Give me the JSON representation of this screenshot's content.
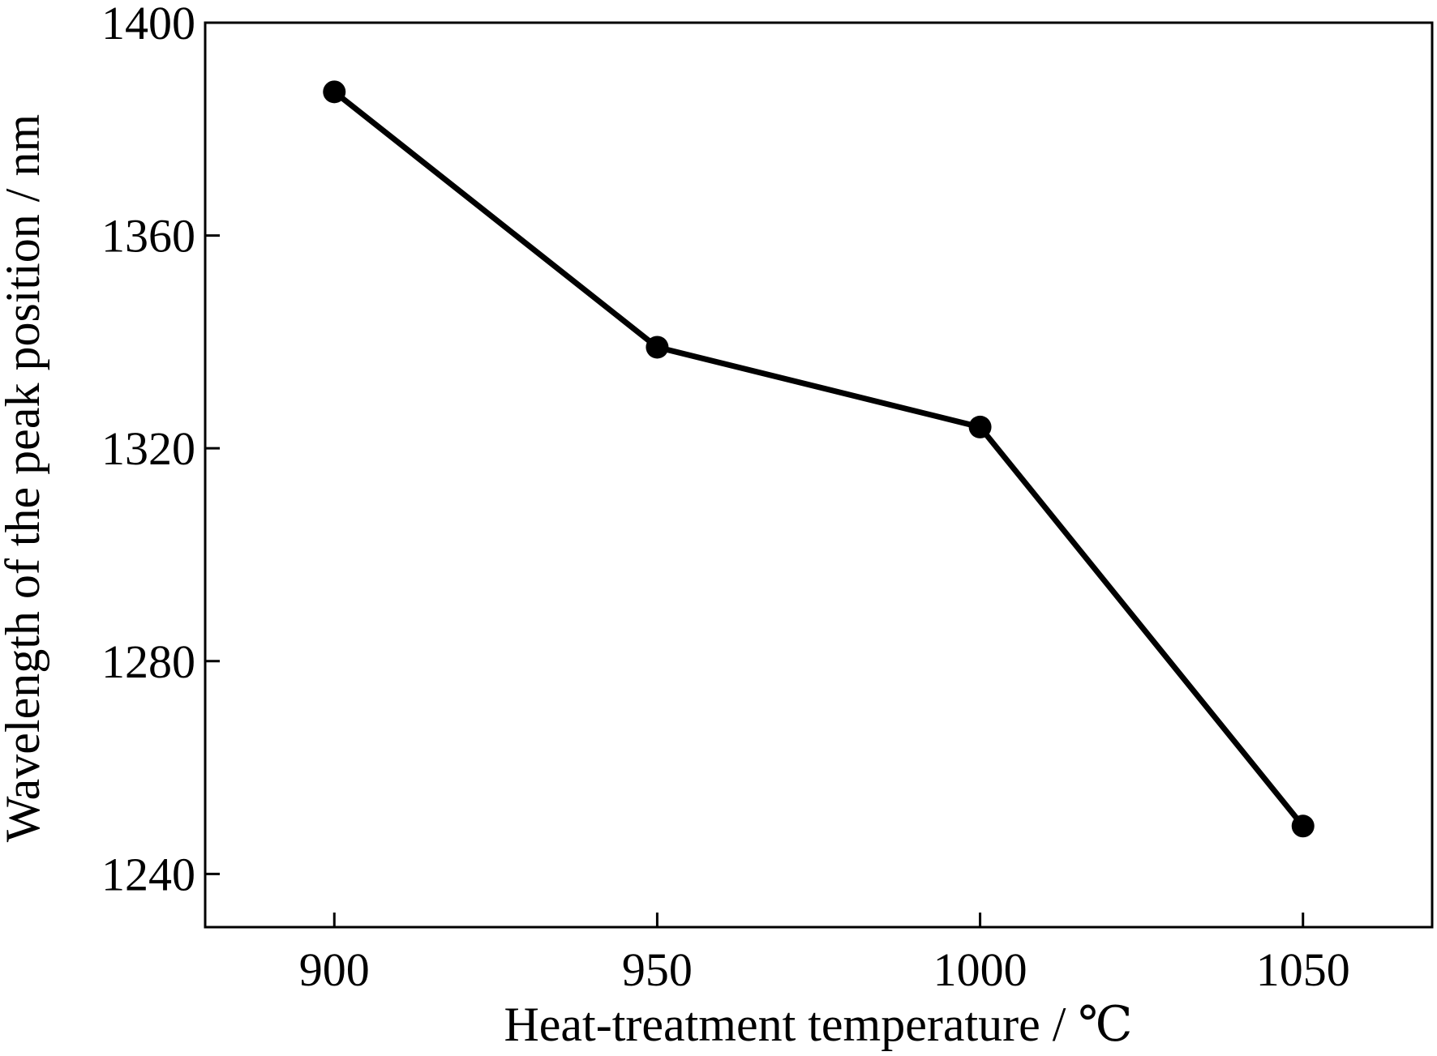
{
  "chart_data": {
    "type": "line",
    "title": "",
    "xlabel": "Heat-treatment temperature / ℃",
    "ylabel": "Wavelength of the peak position / nm",
    "xlim": [
      880,
      1070
    ],
    "ylim": [
      1230,
      1400
    ],
    "xticks": [
      900,
      950,
      1000,
      1050
    ],
    "yticks": [
      1240,
      1280,
      1320,
      1360,
      1400
    ],
    "grid": false,
    "legend": "none",
    "series": [
      {
        "x": [
          900,
          950,
          1000,
          1050
        ],
        "y": [
          1387,
          1339,
          1324,
          1249
        ],
        "color": "#000000",
        "marker": "circle"
      }
    ]
  }
}
